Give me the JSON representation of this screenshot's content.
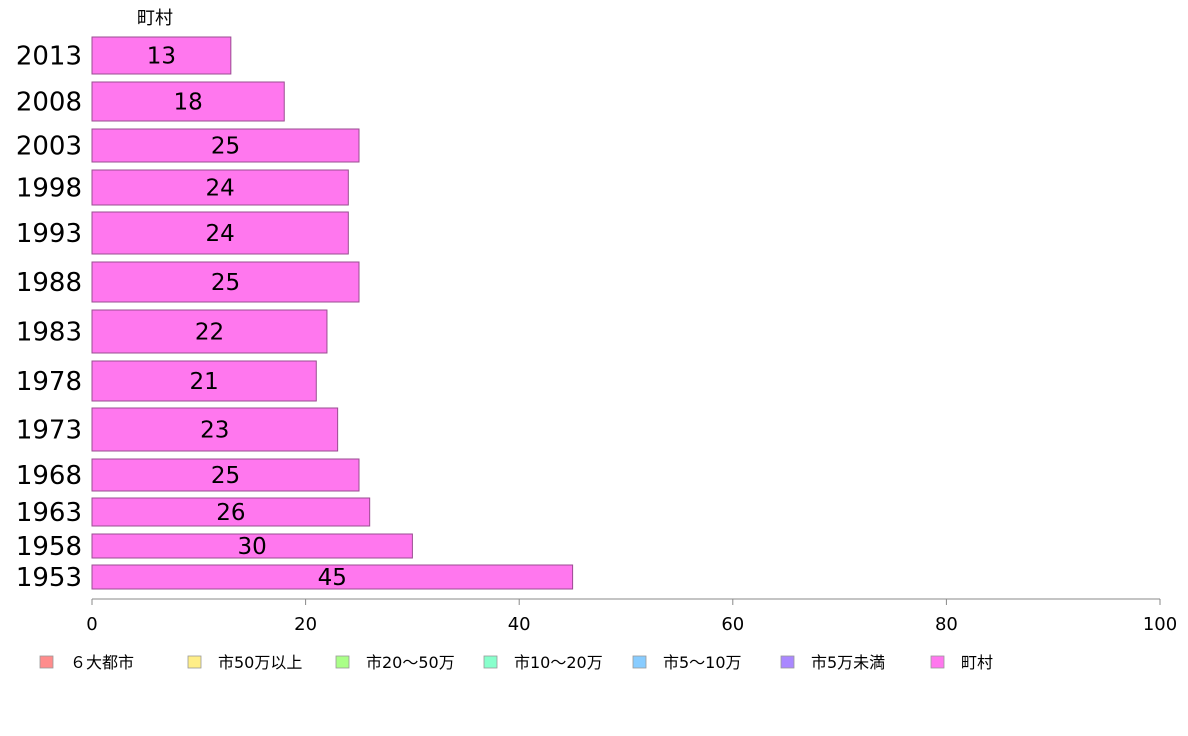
{
  "chart_data": {
    "type": "bar",
    "orientation": "horizontal",
    "series_title": "町村",
    "categories": [
      "2013",
      "2008",
      "2003",
      "1998",
      "1993",
      "1988",
      "1983",
      "1978",
      "1973",
      "1968",
      "1963",
      "1958",
      "1953"
    ],
    "values": [
      13,
      18,
      25,
      24,
      24,
      25,
      22,
      21,
      23,
      25,
      26,
      30,
      45
    ],
    "labels": [
      "13",
      "18",
      "25",
      "24",
      "24",
      "25",
      "22",
      "21",
      "23",
      "25",
      "26",
      "30",
      "45"
    ],
    "xlim": [
      0,
      100
    ],
    "xticks": [
      "0",
      "20",
      "40",
      "60",
      "80",
      "100"
    ],
    "grid": false,
    "legend_position": "bottom",
    "legend": [
      {
        "name": "６大都市",
        "color": "#ff8c8c"
      },
      {
        "name": "市50万以上",
        "color": "#ffee88"
      },
      {
        "name": "市20〜50万",
        "color": "#aaff88"
      },
      {
        "name": "市10〜20万",
        "color": "#88ffcc"
      },
      {
        "name": "市5〜10万",
        "color": "#88ccff"
      },
      {
        "name": "市5万未満",
        "color": "#aa88ff"
      },
      {
        "name": "町村",
        "color": "#ff77ee"
      }
    ],
    "bar_color": "#ff77ee"
  }
}
